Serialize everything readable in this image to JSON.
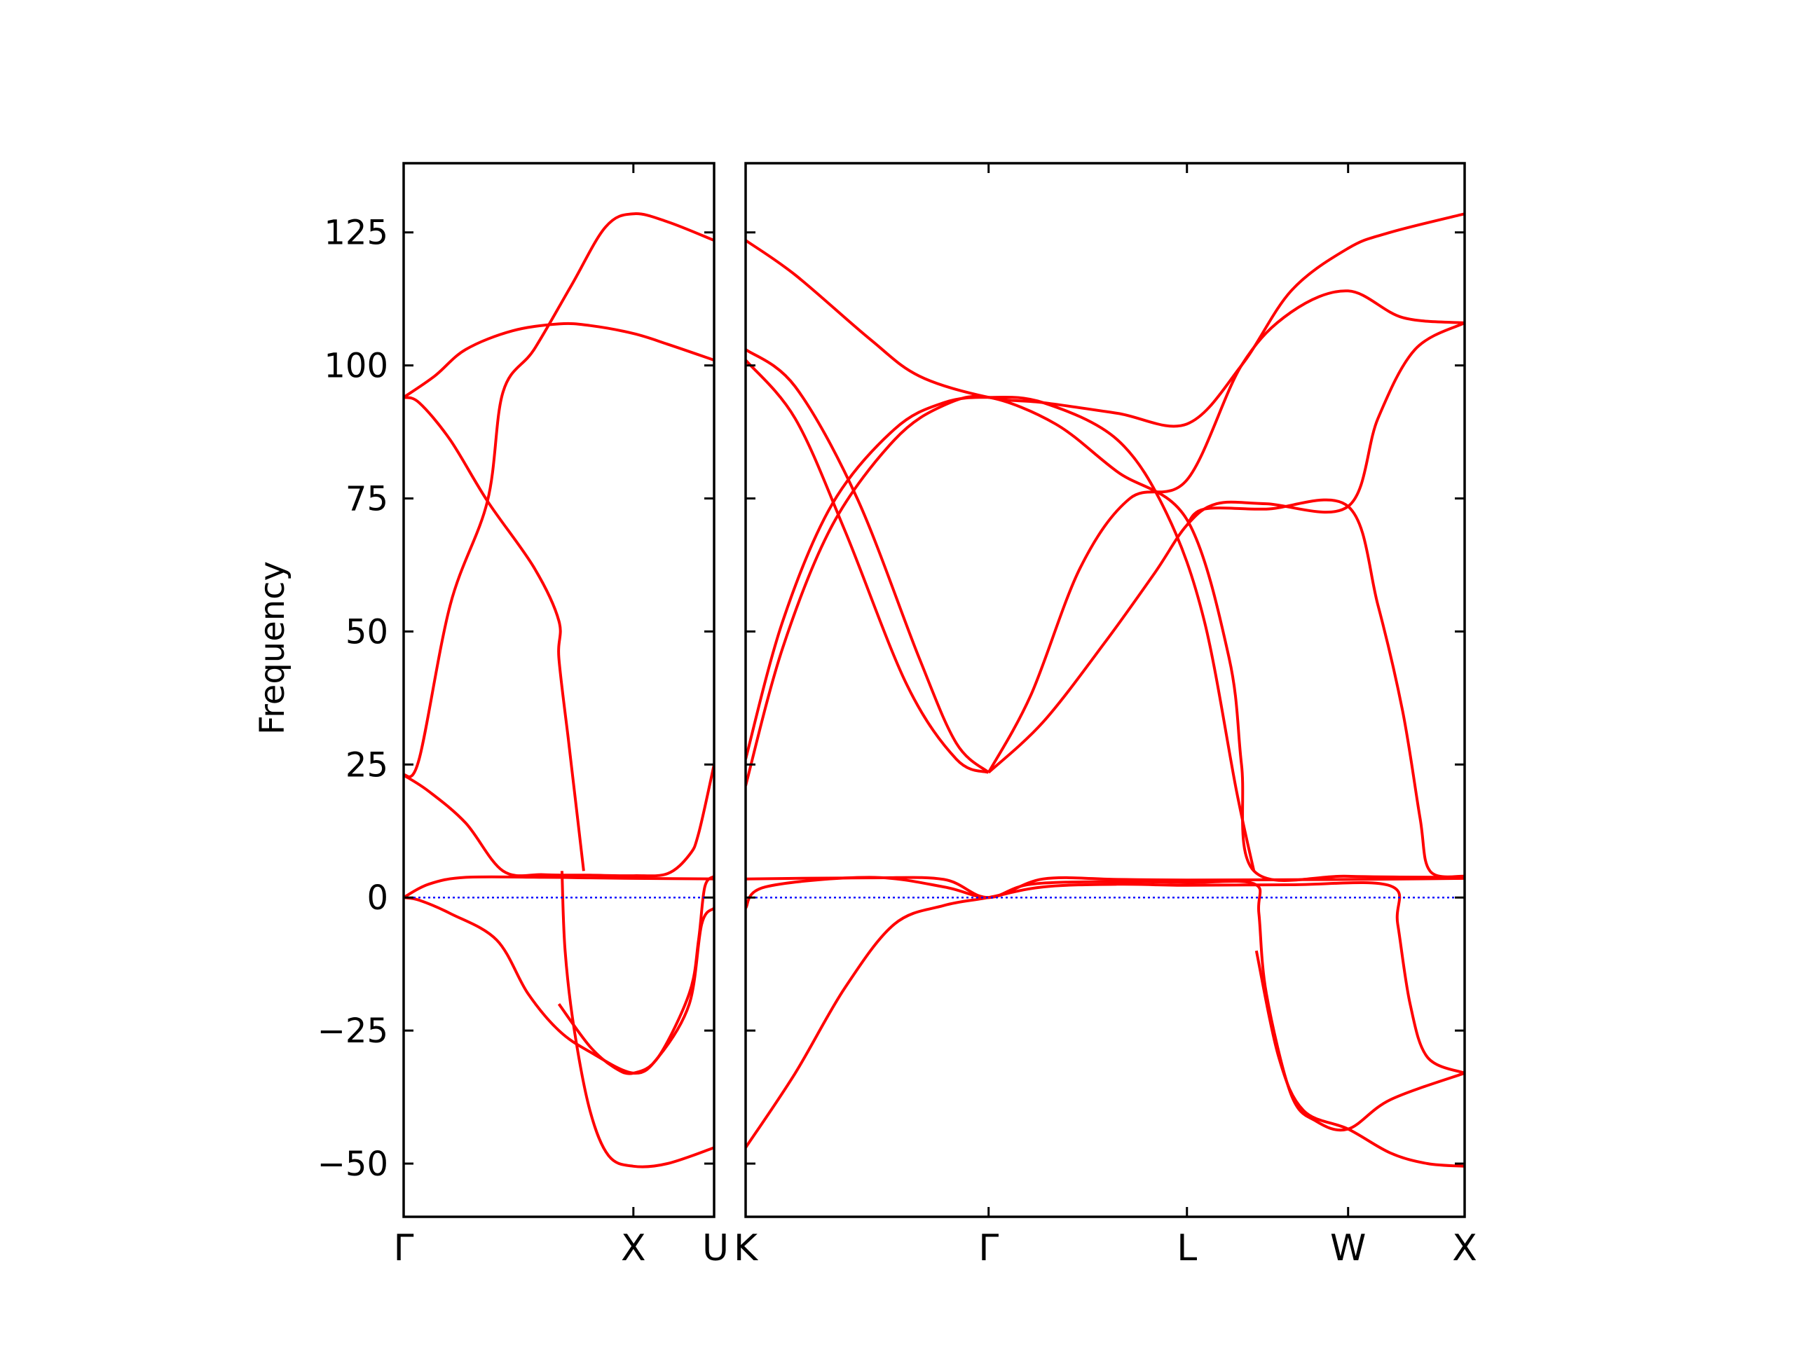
{
  "chart_data": {
    "type": "line",
    "ylabel": "Frequency",
    "ylim": [
      -60,
      138
    ],
    "yticks": [
      -50,
      -25,
      0,
      25,
      50,
      75,
      100,
      125
    ],
    "ytick_labels": [
      "−50",
      "−25",
      "0",
      "25",
      "50",
      "75",
      "100",
      "125"
    ],
    "grid": false,
    "line_color": "#ff0000",
    "zero_line_color": "#0000ff",
    "panels": [
      {
        "xlim": [
          0,
          1.0
        ],
        "high_symmetry_points": [
          {
            "label": "Γ",
            "x": 0.0
          },
          {
            "label": "X",
            "x": 0.74
          }
        ],
        "right_label": "U",
        "series": [
          {
            "values": [
              [
                0,
                94
              ],
              [
                0.1,
                98
              ],
              [
                0.2,
                103
              ],
              [
                0.35,
                106.5
              ],
              [
                0.5,
                107.8
              ],
              [
                0.6,
                107.5
              ],
              [
                0.74,
                106
              ],
              [
                0.85,
                104
              ],
              [
                1.0,
                101
              ]
            ]
          },
          {
            "values": [
              [
                0,
                94
              ],
              [
                0.05,
                93
              ],
              [
                0.15,
                86
              ],
              [
                0.27,
                74.5
              ],
              [
                0.42,
                62
              ],
              [
                0.5,
                52
              ],
              [
                0.5,
                45
              ],
              [
                0.53,
                30
              ],
              [
                0.54,
                25
              ],
              [
                0.57,
                10
              ],
              [
                0.58,
                5
              ]
            ]
          },
          {
            "values": [
              [
                0,
                23
              ],
              [
                0.05,
                26
              ],
              [
                0.15,
                55
              ],
              [
                0.27,
                74.5
              ],
              [
                0.32,
                95
              ],
              [
                0.42,
                103
              ],
              [
                0.54,
                115
              ],
              [
                0.65,
                126
              ],
              [
                0.74,
                128.5
              ],
              [
                0.85,
                127
              ],
              [
                1.0,
                123.5
              ]
            ]
          },
          {
            "values": [
              [
                0,
                23
              ],
              [
                0.08,
                20
              ],
              [
                0.2,
                14
              ],
              [
                0.32,
                5
              ],
              [
                0.45,
                4.3
              ],
              [
                0.6,
                4.2
              ],
              [
                0.74,
                4.1
              ],
              [
                0.85,
                4.5
              ],
              [
                0.92,
                8
              ],
              [
                0.95,
                12
              ],
              [
                1.0,
                25
              ]
            ]
          },
          {
            "values": [
              [
                0,
                0
              ],
              [
                0.08,
                2.5
              ],
              [
                0.2,
                3.8
              ],
              [
                0.45,
                3.8
              ],
              [
                0.6,
                3.7
              ],
              [
                0.74,
                3.6
              ],
              [
                1.0,
                3.5
              ]
            ]
          },
          {
            "values": [
              [
                0,
                0
              ],
              [
                0.05,
                -0.5
              ],
              [
                0.15,
                -3
              ],
              [
                0.3,
                -8
              ],
              [
                0.4,
                -18
              ],
              [
                0.5,
                -25
              ],
              [
                0.6,
                -29
              ],
              [
                0.74,
                -33
              ],
              [
                0.82,
                -30
              ],
              [
                0.92,
                -20
              ],
              [
                0.96,
                -5
              ],
              [
                1.0,
                -2
              ]
            ]
          },
          {
            "values": [
              [
                0.51,
                5
              ],
              [
                0.52,
                -10
              ],
              [
                0.55,
                -25
              ],
              [
                0.6,
                -40
              ],
              [
                0.66,
                -48.5
              ],
              [
                0.74,
                -50.5
              ],
              [
                0.85,
                -50
              ],
              [
                1.0,
                -47
              ]
            ]
          },
          {
            "values": [
              [
                0.5,
                -20
              ],
              [
                0.6,
                -28
              ],
              [
                0.68,
                -32
              ],
              [
                0.74,
                -33
              ],
              [
                0.82,
                -30
              ],
              [
                0.92,
                -18
              ],
              [
                0.95,
                -8
              ],
              [
                0.97,
                2
              ],
              [
                1.0,
                4
              ]
            ]
          }
        ]
      },
      {
        "xlim": [
          0,
          2.9
        ],
        "high_symmetry_points": [
          {
            "label": "K",
            "x": 0.0
          },
          {
            "label": "Γ",
            "x": 0.98
          },
          {
            "label": "L",
            "x": 1.78
          },
          {
            "label": "W",
            "x": 2.43
          },
          {
            "label": "X",
            "x": 2.9
          }
        ],
        "series": [
          {
            "values": [
              [
                0,
                123.5
              ],
              [
                0.2,
                117
              ],
              [
                0.5,
                105
              ],
              [
                0.7,
                98
              ],
              [
                0.98,
                94
              ],
              [
                1.2,
                93
              ],
              [
                1.5,
                91
              ],
              [
                1.78,
                89
              ],
              [
                2.0,
                100
              ],
              [
                2.2,
                114
              ],
              [
                2.43,
                122
              ],
              [
                2.6,
                125
              ],
              [
                2.9,
                128.5
              ]
            ]
          },
          {
            "values": [
              [
                0,
                103
              ],
              [
                0.2,
                96
              ],
              [
                0.45,
                75
              ],
              [
                0.7,
                45
              ],
              [
                0.85,
                29
              ],
              [
                0.98,
                23.5
              ]
            ]
          },
          {
            "values": [
              [
                0,
                101
              ],
              [
                0.2,
                90
              ],
              [
                0.4,
                69
              ],
              [
                0.65,
                40
              ],
              [
                0.85,
                26
              ],
              [
                0.98,
                23.5
              ]
            ]
          },
          {
            "values": [
              [
                0,
                26
              ],
              [
                0.15,
                52
              ],
              [
                0.35,
                74
              ],
              [
                0.6,
                88
              ],
              [
                0.8,
                93
              ],
              [
                0.98,
                94
              ],
              [
                1.2,
                93
              ],
              [
                1.5,
                86
              ],
              [
                1.7,
                72
              ],
              [
                1.85,
                52
              ],
              [
                1.98,
                20
              ],
              [
                2.05,
                5
              ]
            ]
          },
          {
            "values": [
              [
                0,
                21
              ],
              [
                0.15,
                47
              ],
              [
                0.35,
                70
              ],
              [
                0.6,
                86
              ],
              [
                0.8,
                92.5
              ],
              [
                0.98,
                94
              ],
              [
                1.25,
                89
              ],
              [
                1.5,
                80
              ],
              [
                1.78,
                71
              ],
              [
                1.95,
                45
              ],
              [
                2.0,
                25
              ],
              [
                2.05,
                5
              ],
              [
                2.43,
                4
              ],
              [
                2.9,
                3.8
              ]
            ]
          },
          {
            "values": [
              [
                0.98,
                23.5
              ],
              [
                1.15,
                38
              ],
              [
                1.35,
                62
              ],
              [
                1.55,
                75
              ],
              [
                1.78,
                78.5
              ],
              [
                2.0,
                100
              ],
              [
                2.2,
                110
              ],
              [
                2.43,
                114
              ],
              [
                2.65,
                109
              ],
              [
                2.9,
                108
              ]
            ]
          },
          {
            "values": [
              [
                0.98,
                23.5
              ],
              [
                1.2,
                33
              ],
              [
                1.45,
                48
              ],
              [
                1.65,
                61
              ],
              [
                1.78,
                70
              ],
              [
                1.9,
                74
              ],
              [
                2.1,
                74
              ],
              [
                2.43,
                73.5
              ],
              [
                2.55,
                90
              ],
              [
                2.7,
                103
              ],
              [
                2.9,
                108
              ]
            ]
          },
          {
            "values": [
              [
                1.78,
                70
              ],
              [
                1.85,
                73
              ],
              [
                2.1,
                73
              ],
              [
                2.43,
                73.5
              ],
              [
                2.55,
                55
              ],
              [
                2.65,
                35
              ],
              [
                2.72,
                15
              ],
              [
                2.76,
                5
              ],
              [
                2.9,
                4
              ]
            ]
          },
          {
            "values": [
              [
                0,
                3.5
              ],
              [
                0.5,
                3.7
              ],
              [
                0.8,
                3.4
              ],
              [
                0.98,
                0
              ],
              [
                1.2,
                3.5
              ],
              [
                1.5,
                3.4
              ],
              [
                1.78,
                3.3
              ],
              [
                2.43,
                3.4
              ],
              [
                2.9,
                3.6
              ]
            ]
          },
          {
            "values": [
              [
                0,
                -2
              ],
              [
                0.08,
                2
              ],
              [
                0.5,
                3.8
              ],
              [
                0.8,
                2
              ],
              [
                0.98,
                0
              ],
              [
                1.15,
                2.5
              ],
              [
                1.5,
                3
              ],
              [
                1.78,
                2.8
              ],
              [
                2.05,
                2.6
              ],
              [
                2.07,
                -3
              ],
              [
                2.1,
                -18
              ],
              [
                2.2,
                -37
              ],
              [
                2.3,
                -42
              ],
              [
                2.43,
                -43.5
              ],
              [
                2.6,
                -38
              ],
              [
                2.9,
                -33
              ]
            ]
          },
          {
            "values": [
              [
                0,
                -47
              ],
              [
                0.2,
                -33
              ],
              [
                0.4,
                -17
              ],
              [
                0.6,
                -5
              ],
              [
                0.8,
                -1.5
              ],
              [
                0.98,
                0
              ],
              [
                1.2,
                2
              ],
              [
                1.5,
                2.5
              ],
              [
                1.78,
                2.3
              ],
              [
                2.2,
                2.4
              ],
              [
                2.6,
                2.2
              ],
              [
                2.63,
                -5
              ],
              [
                2.68,
                -20
              ],
              [
                2.75,
                -30
              ],
              [
                2.9,
                -33
              ]
            ]
          },
          {
            "values": [
              [
                2.06,
                -10
              ],
              [
                2.15,
                -30
              ],
              [
                2.25,
                -40
              ],
              [
                2.43,
                -43.5
              ],
              [
                2.6,
                -48
              ],
              [
                2.75,
                -50
              ],
              [
                2.9,
                -50.5
              ]
            ]
          }
        ]
      }
    ]
  }
}
